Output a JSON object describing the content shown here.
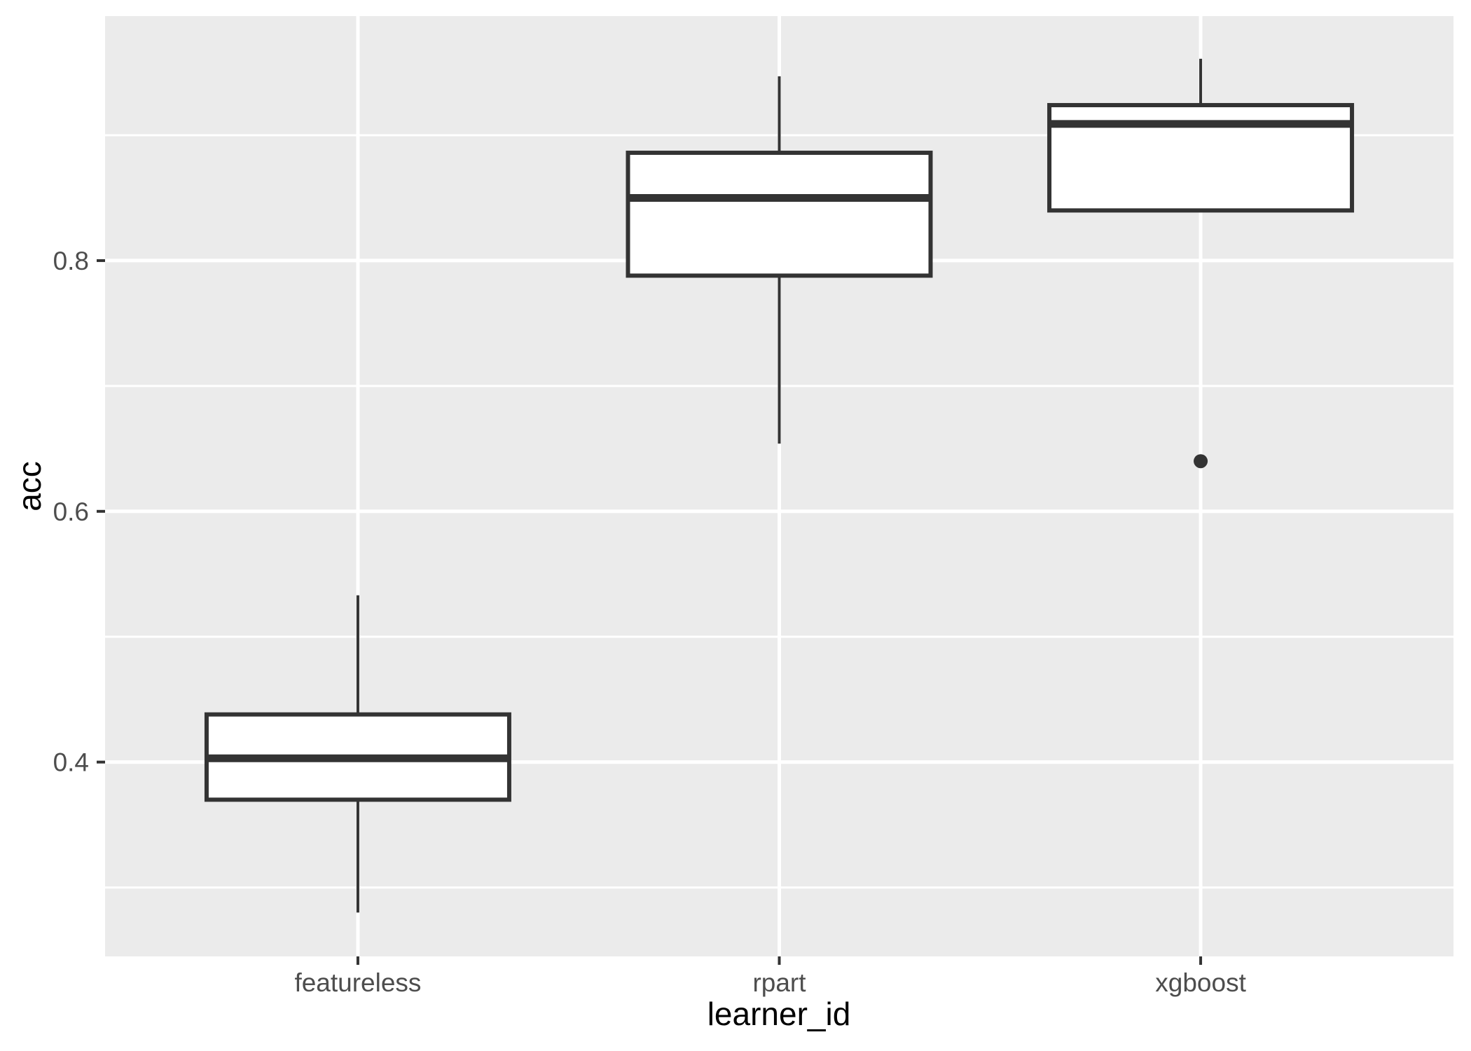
{
  "figure": {
    "background": "#FFFFFF",
    "panel_background": "#EBEBEB",
    "grid_color": "#FFFFFF",
    "box_stroke": "#333333",
    "box_fill": "#FFFFFF",
    "outlier_color": "#333333",
    "tick_mark_color": "#333333",
    "tick_label_color": "#4D4D4D",
    "axis_title_color": "#000000"
  },
  "chart_data": {
    "type": "boxplot",
    "title": "",
    "xlabel": "learner_id",
    "ylabel": "acc",
    "categories": [
      "featureless",
      "rpart",
      "xgboost"
    ],
    "y_axis": {
      "ticks": [
        0.4,
        0.6,
        0.8
      ],
      "tick_labels": [
        "0.4",
        "0.6",
        "0.8"
      ],
      "minor_ticks": [
        0.3,
        0.5,
        0.7,
        0.9
      ],
      "ylim": [
        0.245,
        0.995
      ],
      "grid": "on",
      "legend": "none"
    },
    "series": [
      {
        "learner_id": "featureless",
        "whisker_low": 0.28,
        "q1": 0.37,
        "median": 0.403,
        "q3": 0.438,
        "whisker_high": 0.533,
        "outliers": []
      },
      {
        "learner_id": "rpart",
        "whisker_low": 0.654,
        "q1": 0.788,
        "median": 0.85,
        "q3": 0.886,
        "whisker_high": 0.947,
        "outliers": []
      },
      {
        "learner_id": "xgboost",
        "whisker_low": 0.84,
        "q1": 0.84,
        "median": 0.909,
        "q3": 0.924,
        "whisker_high": 0.961,
        "outliers": [
          0.64
        ]
      }
    ]
  }
}
